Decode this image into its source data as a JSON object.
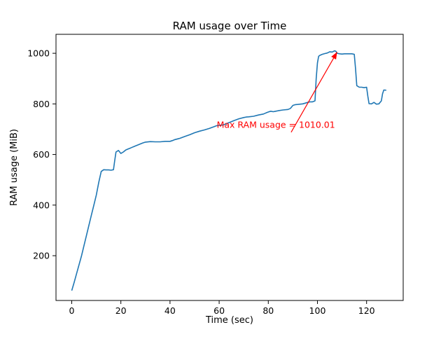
{
  "chart_data": {
    "type": "line",
    "title": "RAM usage over Time",
    "xlabel": "Time (sec)",
    "ylabel": "RAM usage (MiB)",
    "xlim": [
      -6.4,
      134.9
    ],
    "ylim": [
      23,
      1075
    ],
    "xticks": [
      0,
      20,
      40,
      60,
      80,
      100,
      120
    ],
    "yticks": [
      200,
      400,
      600,
      800,
      1000
    ],
    "grid": false,
    "legend": null,
    "line_color": "#1f77b4",
    "background": "#ffffff",
    "series": [
      {
        "name": "RAM usage",
        "points": [
          [
            0,
            62
          ],
          [
            1,
            95
          ],
          [
            2,
            130
          ],
          [
            3,
            165
          ],
          [
            4,
            200
          ],
          [
            5,
            240
          ],
          [
            6,
            280
          ],
          [
            7,
            320
          ],
          [
            8,
            360
          ],
          [
            9,
            400
          ],
          [
            10,
            440
          ],
          [
            11,
            490
          ],
          [
            12,
            533
          ],
          [
            13,
            540
          ],
          [
            14,
            539
          ],
          [
            15,
            539
          ],
          [
            16,
            538
          ],
          [
            17,
            540
          ],
          [
            17.5,
            576
          ],
          [
            18,
            610
          ],
          [
            19,
            616
          ],
          [
            20,
            604
          ],
          [
            21,
            610
          ],
          [
            22,
            618
          ],
          [
            23,
            622
          ],
          [
            24,
            626
          ],
          [
            25,
            630
          ],
          [
            26,
            634
          ],
          [
            27,
            638
          ],
          [
            28,
            642
          ],
          [
            29,
            646
          ],
          [
            30,
            649
          ],
          [
            32,
            651
          ],
          [
            34,
            650
          ],
          [
            36,
            650
          ],
          [
            38,
            652
          ],
          [
            40,
            652
          ],
          [
            41,
            655
          ],
          [
            42,
            659
          ],
          [
            44,
            664
          ],
          [
            46,
            671
          ],
          [
            48,
            678
          ],
          [
            50,
            686
          ],
          [
            52,
            692
          ],
          [
            54,
            697
          ],
          [
            56,
            703
          ],
          [
            58,
            710
          ],
          [
            59,
            714
          ],
          [
            60,
            715
          ],
          [
            61,
            716
          ],
          [
            62,
            718
          ],
          [
            63,
            722
          ],
          [
            64,
            726
          ],
          [
            66,
            734
          ],
          [
            68,
            741
          ],
          [
            70,
            746
          ],
          [
            71,
            748
          ],
          [
            72,
            749
          ],
          [
            74,
            751
          ],
          [
            76,
            756
          ],
          [
            78,
            760
          ],
          [
            79,
            764
          ],
          [
            80,
            768
          ],
          [
            81,
            771
          ],
          [
            82,
            769
          ],
          [
            83,
            771
          ],
          [
            84,
            773
          ],
          [
            86,
            776
          ],
          [
            88,
            778
          ],
          [
            89,
            782
          ],
          [
            90,
            794
          ],
          [
            91,
            797
          ],
          [
            92,
            798
          ],
          [
            94,
            800
          ],
          [
            95,
            803
          ],
          [
            96,
            806
          ],
          [
            97,
            808
          ],
          [
            98,
            808
          ],
          [
            99,
            812
          ],
          [
            99.5,
            900
          ],
          [
            100,
            962
          ],
          [
            100.5,
            988
          ],
          [
            101,
            992
          ],
          [
            102,
            996
          ],
          [
            103,
            999
          ],
          [
            104,
            1001
          ],
          [
            105,
            1006
          ],
          [
            106,
            1005
          ],
          [
            107,
            1010.01
          ],
          [
            107.5,
            1008
          ],
          [
            108,
            1000
          ],
          [
            109,
            998
          ],
          [
            110,
            997
          ],
          [
            111,
            998
          ],
          [
            112,
            998
          ],
          [
            113,
            998
          ],
          [
            114,
            998
          ],
          [
            115,
            996
          ],
          [
            115.5,
            940
          ],
          [
            116,
            872
          ],
          [
            117,
            866
          ],
          [
            118,
            866
          ],
          [
            119,
            864
          ],
          [
            120,
            866
          ],
          [
            120.5,
            830
          ],
          [
            121,
            801
          ],
          [
            122,
            800
          ],
          [
            123,
            806
          ],
          [
            124,
            799
          ],
          [
            125,
            800
          ],
          [
            126,
            812
          ],
          [
            126.5,
            840
          ],
          [
            127,
            855
          ],
          [
            128,
            854
          ]
        ]
      }
    ],
    "annotation": {
      "text": "Max RAM usage = 1010.01",
      "color": "#ff0000",
      "text_xy": [
        59,
        706
      ],
      "arrow_tail_xy": [
        89.3,
        688
      ],
      "arrow_tip_xy": [
        108,
        1005
      ],
      "max_value": 1010.01
    }
  }
}
